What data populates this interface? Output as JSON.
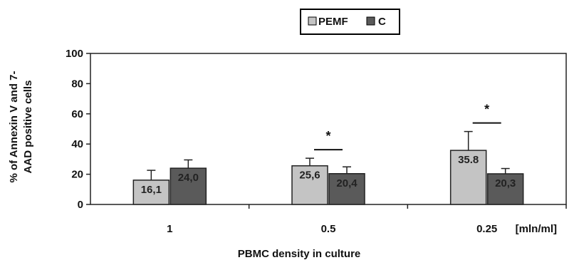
{
  "chart_data": {
    "type": "bar",
    "categories": [
      "1",
      "0.5",
      "0.25"
    ],
    "x_unit": "[mln/ml]",
    "series": [
      {
        "name": "PEMF",
        "values": [
          16.1,
          25.6,
          35.8
        ],
        "errors": [
          6.5,
          5.0,
          12.5
        ],
        "color": "#c4c4c4"
      },
      {
        "name": "C",
        "values": [
          24.0,
          20.4,
          20.3
        ],
        "errors": [
          5.5,
          4.5,
          3.5
        ],
        "color": "#5a5a5a"
      }
    ],
    "data_labels": [
      [
        "16,1",
        "25,6",
        "35.8"
      ],
      [
        "24,0",
        "20,4",
        "20,3"
      ]
    ],
    "significance": [
      "",
      "*",
      "*"
    ],
    "xlabel": "PBMC density in culture",
    "ylabel_lines": [
      "% of Annexin V and 7-",
      "AAD positive cells"
    ],
    "ylim": [
      0,
      100
    ],
    "yticks": [
      0,
      20,
      40,
      60,
      80,
      100
    ],
    "grid": false,
    "legend_position": "top-center"
  }
}
